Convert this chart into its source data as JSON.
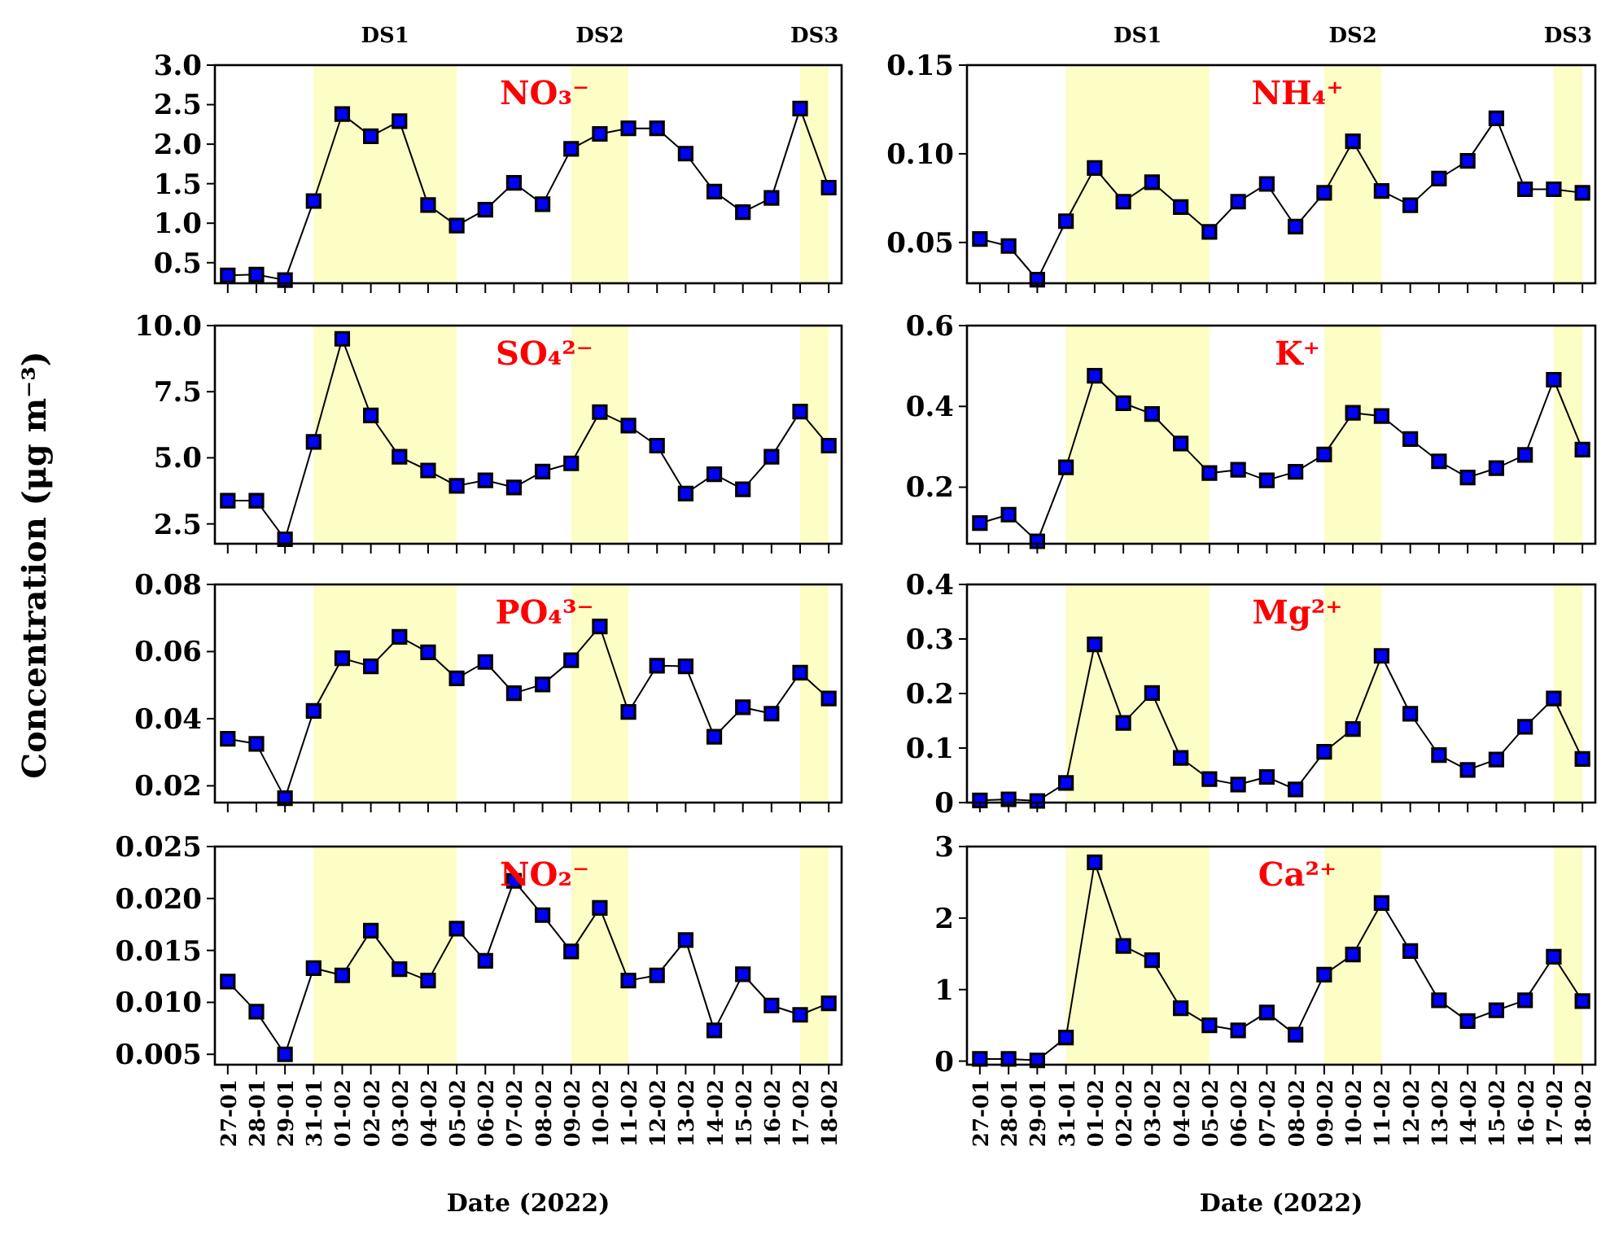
{
  "chart_data": [
    {
      "type": "line",
      "title": "NO₃⁻",
      "ylabel": "Concentration (μg m⁻³)",
      "categories": [
        "27-01",
        "28-01",
        "29-01",
        "31-01",
        "01-02",
        "02-02",
        "03-02",
        "04-02",
        "05-02",
        "06-02",
        "07-02",
        "08-02",
        "09-02",
        "10-02",
        "11-02",
        "12-02",
        "13-02",
        "14-02",
        "15-02",
        "16-02",
        "17-02",
        "18-02"
      ],
      "series": [
        {
          "color": "#0000ff",
          "values": [
            0.34,
            0.35,
            0.28,
            1.28,
            2.38,
            2.1,
            2.29,
            1.23,
            0.97,
            1.17,
            1.51,
            1.24,
            1.94,
            2.13,
            2.2,
            2.2,
            1.88,
            1.4,
            1.14,
            1.32,
            2.45,
            1.45
          ]
        }
      ],
      "ylim": [
        0.24,
        3.0
      ],
      "yticks": [
        {
          "value": 0.5,
          "label": "0.5"
        },
        {
          "value": 1,
          "label": "1.0"
        },
        {
          "value": 1.5,
          "label": "1.5"
        },
        {
          "value": 2,
          "label": "2.0"
        },
        {
          "value": 2.5,
          "label": "2.5"
        },
        {
          "value": 3,
          "label": "3.0"
        }
      ],
      "bands": [
        {
          "axis": "x",
          "from": "31-01",
          "to": "05-02",
          "label": "DS1",
          "color": "#fdfdc6"
        },
        {
          "axis": "x",
          "from": "09-02",
          "to": "11-02",
          "label": "DS2",
          "color": "#fdfdc6"
        },
        {
          "axis": "x",
          "from": "17-02",
          "to": "18-02",
          "label": "DS3",
          "color": "#fdfdc6"
        }
      ],
      "marker": "square",
      "tick_labels": "y"
    },
    {
      "type": "line",
      "title": "NH₄⁺",
      "categories": [
        "27-01",
        "28-01",
        "29-01",
        "31-01",
        "01-02",
        "02-02",
        "03-02",
        "04-02",
        "05-02",
        "06-02",
        "07-02",
        "08-02",
        "09-02",
        "10-02",
        "11-02",
        "12-02",
        "13-02",
        "14-02",
        "15-02",
        "16-02",
        "17-02",
        "18-02"
      ],
      "series": [
        {
          "color": "#0000ff",
          "values": [
            0.052,
            0.048,
            0.029,
            0.062,
            0.092,
            0.073,
            0.084,
            0.07,
            0.056,
            0.073,
            0.083,
            0.059,
            0.078,
            0.107,
            0.079,
            0.071,
            0.086,
            0.096,
            0.12,
            0.08,
            0.08,
            0.078
          ]
        }
      ],
      "ylim": [
        0.027,
        0.15
      ],
      "yticks": [
        0.05,
        {
          "value": 0.1,
          "label": "0.10"
        },
        0.15
      ],
      "bands": [
        {
          "axis": "x",
          "from": "31-01",
          "to": "05-02",
          "label": "DS1",
          "color": "#fdfdc6"
        },
        {
          "axis": "x",
          "from": "09-02",
          "to": "11-02",
          "label": "DS2",
          "color": "#fdfdc6"
        },
        {
          "axis": "x",
          "from": "17-02",
          "to": "18-02",
          "label": "DS3",
          "color": "#fdfdc6"
        }
      ],
      "marker": "square",
      "tick_labels": "y"
    },
    {
      "type": "line",
      "title": "SO₄²⁻",
      "categories": [
        "27-01",
        "28-01",
        "29-01",
        "31-01",
        "01-02",
        "02-02",
        "03-02",
        "04-02",
        "05-02",
        "06-02",
        "07-02",
        "08-02",
        "09-02",
        "10-02",
        "11-02",
        "12-02",
        "13-02",
        "14-02",
        "15-02",
        "16-02",
        "17-02",
        "18-02"
      ],
      "series": [
        {
          "color": "#0000ff",
          "values": [
            3.38,
            3.38,
            1.92,
            5.6,
            9.5,
            6.6,
            5.04,
            4.52,
            3.94,
            4.15,
            3.88,
            4.48,
            4.79,
            6.73,
            6.22,
            5.46,
            3.65,
            4.38,
            3.81,
            5.04,
            6.75,
            5.46
          ]
        }
      ],
      "ylim": [
        1.75,
        10.0
      ],
      "yticks": [
        2.5,
        {
          "value": 5,
          "label": "5.0"
        },
        7.5,
        {
          "value": 10,
          "label": "10.0"
        }
      ],
      "bands": [
        {
          "axis": "x",
          "from": "31-01",
          "to": "05-02",
          "color": "#fdfdc6"
        },
        {
          "axis": "x",
          "from": "09-02",
          "to": "11-02",
          "color": "#fdfdc6"
        },
        {
          "axis": "x",
          "from": "17-02",
          "to": "18-02",
          "color": "#fdfdc6"
        }
      ],
      "marker": "square",
      "tick_labels": "y"
    },
    {
      "type": "line",
      "title": "K⁺",
      "categories": [
        "27-01",
        "28-01",
        "29-01",
        "31-01",
        "01-02",
        "02-02",
        "03-02",
        "04-02",
        "05-02",
        "06-02",
        "07-02",
        "08-02",
        "09-02",
        "10-02",
        "11-02",
        "12-02",
        "13-02",
        "14-02",
        "15-02",
        "16-02",
        "17-02",
        "18-02"
      ],
      "series": [
        {
          "color": "#0000ff",
          "values": [
            0.111,
            0.132,
            0.066,
            0.249,
            0.476,
            0.408,
            0.381,
            0.308,
            0.235,
            0.243,
            0.217,
            0.238,
            0.281,
            0.384,
            0.376,
            0.319,
            0.264,
            0.224,
            0.247,
            0.28,
            0.466,
            0.293
          ]
        }
      ],
      "ylim": [
        0.06,
        0.6
      ],
      "yticks": [
        0.2,
        0.4,
        0.6
      ],
      "bands": [
        {
          "axis": "x",
          "from": "31-01",
          "to": "05-02",
          "color": "#fdfdc6"
        },
        {
          "axis": "x",
          "from": "09-02",
          "to": "11-02",
          "color": "#fdfdc6"
        },
        {
          "axis": "x",
          "from": "17-02",
          "to": "18-02",
          "color": "#fdfdc6"
        }
      ],
      "marker": "square",
      "tick_labels": "y"
    },
    {
      "type": "line",
      "title": "PO₄³⁻",
      "categories": [
        "27-01",
        "28-01",
        "29-01",
        "31-01",
        "01-02",
        "02-02",
        "03-02",
        "04-02",
        "05-02",
        "06-02",
        "07-02",
        "08-02",
        "09-02",
        "10-02",
        "11-02",
        "12-02",
        "13-02",
        "14-02",
        "15-02",
        "16-02",
        "17-02",
        "18-02"
      ],
      "series": [
        {
          "color": "#0000ff",
          "values": [
            0.034,
            0.0325,
            0.0163,
            0.0423,
            0.058,
            0.0556,
            0.0644,
            0.0598,
            0.052,
            0.0569,
            0.0476,
            0.0502,
            0.0574,
            0.0675,
            0.042,
            0.0558,
            0.0556,
            0.0346,
            0.0434,
            0.0415,
            0.0537,
            0.046
          ]
        }
      ],
      "ylim": [
        0.015,
        0.08
      ],
      "yticks": [
        0.02,
        0.04,
        0.06,
        0.08
      ],
      "bands": [
        {
          "axis": "x",
          "from": "31-01",
          "to": "05-02",
          "color": "#fdfdc6"
        },
        {
          "axis": "x",
          "from": "09-02",
          "to": "11-02",
          "color": "#fdfdc6"
        },
        {
          "axis": "x",
          "from": "17-02",
          "to": "18-02",
          "color": "#fdfdc6"
        }
      ],
      "marker": "square",
      "tick_labels": "y"
    },
    {
      "type": "line",
      "title": "Mg²⁺",
      "categories": [
        "27-01",
        "28-01",
        "29-01",
        "31-01",
        "01-02",
        "02-02",
        "03-02",
        "04-02",
        "05-02",
        "06-02",
        "07-02",
        "08-02",
        "09-02",
        "10-02",
        "11-02",
        "12-02",
        "13-02",
        "14-02",
        "15-02",
        "16-02",
        "17-02",
        "18-02"
      ],
      "series": [
        {
          "color": "#0000ff",
          "values": [
            0.004,
            0.006,
            0.003,
            0.036,
            0.29,
            0.146,
            0.201,
            0.082,
            0.043,
            0.033,
            0.047,
            0.024,
            0.093,
            0.135,
            0.269,
            0.163,
            0.087,
            0.06,
            0.079,
            0.139,
            0.191,
            0.08
          ]
        }
      ],
      "ylim": [
        0,
        0.4
      ],
      "yticks": [
        0,
        0.1,
        0.2,
        0.3,
        0.4
      ],
      "bands": [
        {
          "axis": "x",
          "from": "31-01",
          "to": "05-02",
          "color": "#fdfdc6"
        },
        {
          "axis": "x",
          "from": "09-02",
          "to": "11-02",
          "color": "#fdfdc6"
        },
        {
          "axis": "x",
          "from": "17-02",
          "to": "18-02",
          "color": "#fdfdc6"
        }
      ],
      "marker": "square",
      "tick_labels": "y"
    },
    {
      "type": "line",
      "title": "NO₂⁻",
      "xlabel": "Date (2022)",
      "categories": [
        "27-01",
        "28-01",
        "29-01",
        "31-01",
        "01-02",
        "02-02",
        "03-02",
        "04-02",
        "05-02",
        "06-02",
        "07-02",
        "08-02",
        "09-02",
        "10-02",
        "11-02",
        "12-02",
        "13-02",
        "14-02",
        "15-02",
        "16-02",
        "17-02",
        "18-02"
      ],
      "series": [
        {
          "color": "#0000ff",
          "values": [
            0.012,
            0.0091,
            0.005,
            0.0133,
            0.0126,
            0.0169,
            0.0132,
            0.0121,
            0.0171,
            0.014,
            0.0217,
            0.0184,
            0.0149,
            0.0191,
            0.0121,
            0.0126,
            0.016,
            0.0073,
            0.0127,
            0.0097,
            0.0088,
            0.0099
          ]
        }
      ],
      "ylim": [
        0.004,
        0.025
      ],
      "yticks": [
        0.005,
        {
          "value": 0.01,
          "label": "0.010"
        },
        0.015,
        {
          "value": 0.02,
          "label": "0.020"
        },
        0.025
      ],
      "bands": [
        {
          "axis": "x",
          "from": "31-01",
          "to": "05-02",
          "color": "#fdfdc6"
        },
        {
          "axis": "x",
          "from": "09-02",
          "to": "11-02",
          "color": "#fdfdc6"
        },
        {
          "axis": "x",
          "from": "17-02",
          "to": "18-02",
          "color": "#fdfdc6"
        }
      ],
      "marker": "square"
    },
    {
      "type": "line",
      "title": "Ca²⁺",
      "xlabel": "Date (2022)",
      "categories": [
        "27-01",
        "28-01",
        "29-01",
        "31-01",
        "01-02",
        "02-02",
        "03-02",
        "04-02",
        "05-02",
        "06-02",
        "07-02",
        "08-02",
        "09-02",
        "10-02",
        "11-02",
        "12-02",
        "13-02",
        "14-02",
        "15-02",
        "16-02",
        "17-02",
        "18-02"
      ],
      "series": [
        {
          "color": "#0000ff",
          "values": [
            0.03,
            0.03,
            0.01,
            0.33,
            2.78,
            1.61,
            1.41,
            0.74,
            0.5,
            0.43,
            0.68,
            0.37,
            1.21,
            1.49,
            2.21,
            1.54,
            0.85,
            0.56,
            0.71,
            0.85,
            1.46,
            0.84
          ]
        }
      ],
      "ylim": [
        -0.05,
        3.0
      ],
      "yticks": [
        0,
        1,
        2,
        3
      ],
      "bands": [
        {
          "axis": "x",
          "from": "31-01",
          "to": "05-02",
          "color": "#fdfdc6"
        },
        {
          "axis": "x",
          "from": "09-02",
          "to": "11-02",
          "color": "#fdfdc6"
        },
        {
          "axis": "x",
          "from": "17-02",
          "to": "18-02",
          "color": "#fdfdc6"
        }
      ],
      "marker": "square"
    }
  ]
}
